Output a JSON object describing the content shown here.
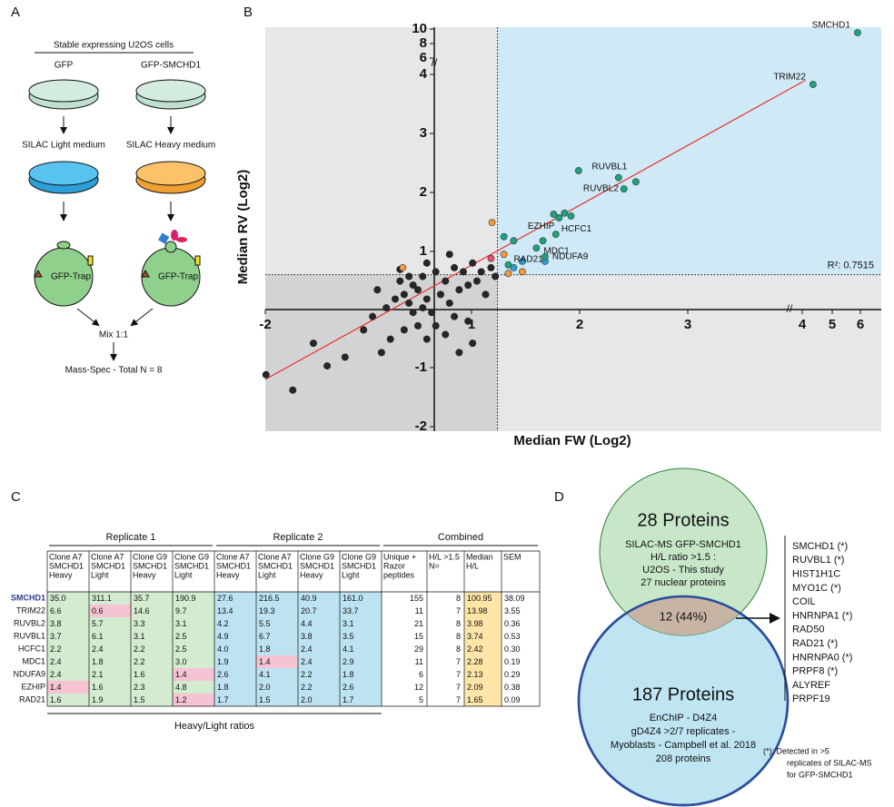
{
  "panel_a": {
    "letter": "A",
    "title": "Stable expressing U2OS cells",
    "left": {
      "label": "GFP",
      "medium": "SILAC Light medium",
      "trap": "GFP-Trap"
    },
    "right": {
      "label": "GFP-SMCHD1",
      "medium": "SILAC Heavy medium",
      "trap": "GFP-Trap"
    },
    "mix": "Mix 1:1",
    "result": "Mass-Spec - Total N = 8"
  },
  "chart_data": {
    "type": "scatter",
    "letter": "B",
    "xlabel": "Median FW (Log2)",
    "ylabel": "Median RV (Log2)",
    "xlim": [
      -2,
      6
    ],
    "ylim": [
      -2,
      10
    ],
    "xticks": [
      -2,
      1,
      2,
      3,
      4,
      5,
      6
    ],
    "yticks": [
      -2,
      -1,
      1,
      2,
      3,
      4,
      6,
      8,
      10
    ],
    "thresholds": {
      "x": 1.24,
      "y": 0.6
    },
    "series": [
      {
        "color": "#262626",
        "x": [
          -1.99,
          -1.6,
          -0.84,
          -0.57,
          -0.44,
          -0.24,
          -0.11,
          0.02,
          0.09,
          0.15,
          0.22,
          0.29,
          0.35,
          0.42,
          0.48,
          0.55,
          0.62,
          0.68,
          0.75,
          0.82,
          0.88,
          0.95,
          1.01,
          1.05,
          1.09,
          1.18,
          1.22,
          0.22,
          0.35,
          0.62,
          0.82,
          1.01,
          -0.18,
          0.02,
          0.15,
          -0.04,
          0.35,
          -0.31,
          0.75,
          0.95,
          1.13,
          0.29,
          0.48,
          0.68,
          0.09,
          -1.1,
          -1.3,
          -0.37,
          -0.04
        ],
        "values": [
          -1.12,
          -1.38,
          -0.82,
          -0.35,
          -0.12,
          0.03,
          0.18,
          0.26,
          0.11,
          0.42,
          0.34,
          0.57,
          0.18,
          -0.05,
          0.65,
          0.26,
          0.49,
          0.11,
          0.72,
          0.34,
          0.65,
          0.42,
          0.8,
          0.49,
          0.65,
          0.72,
          0.57,
          -0.28,
          -0.51,
          -0.43,
          -0.74,
          -0.58,
          -0.51,
          -0.35,
          -0.05,
          0.49,
          0.8,
          -0.74,
          -0.12,
          -0.2,
          0.26,
          0.03,
          -0.28,
          0.95,
          0.57,
          -0.97,
          -0.58,
          0.34,
          0.69
        ]
      },
      {
        "color": "#f39a3b",
        "x": [
          1.19,
          0.0,
          1.3,
          1.34,
          1.47
        ],
        "values": [
          1.49,
          0.72,
          0.95,
          0.62,
          0.65
        ]
      },
      {
        "color": "#2e9fd6",
        "x": [
          1.39,
          1.47,
          1.68
        ],
        "values": [
          0.72,
          0.83,
          0.83
        ]
      },
      {
        "color": "#e8506a",
        "x": [
          1.18
        ],
        "values": [
          0.88
        ]
      },
      {
        "color": "#1fa27a",
        "x": [
          1.99,
          2.52,
          1.76,
          1.81,
          1.86,
          1.92,
          1.3,
          1.39
        ],
        "values": [
          2.37,
          2.18,
          1.63,
          1.57,
          1.65,
          1.6,
          1.25,
          1.18
        ]
      },
      {
        "color": "#1fa27a",
        "x": [
          5.9,
          4.36,
          2.36,
          2.41,
          1.66,
          1.78,
          1.6,
          1.68,
          1.34
        ],
        "values": [
          9.5,
          3.83,
          2.25,
          2.06,
          1.18,
          1.29,
          1.06,
          0.91,
          0.77
        ],
        "point_labels": [
          "SMCHD1",
          "TRIM22",
          "RUVBL1",
          "RUVBL2",
          "EZHIP",
          "HCFC1",
          "MDC1",
          "NDUFA9",
          "RAD21"
        ]
      }
    ],
    "fit": {
      "color": "#e8302a",
      "x": [
        -2,
        4.1
      ],
      "values": [
        -1.2,
        3.9
      ],
      "label": "R²: 0.7515"
    }
  },
  "table": {
    "letter": "C",
    "groups": [
      "Replicate 1",
      "Replicate 2",
      "Combined"
    ],
    "footer": "Heavy/Light ratios",
    "columns": [
      [
        "Clone A7",
        "SMCHD1",
        "Heavy"
      ],
      [
        "Clone A7",
        "SMCHD1",
        "Light"
      ],
      [
        "Clone G9",
        "SMCHD1",
        "Heavy"
      ],
      [
        "Clone G9",
        "SMCHD1",
        "Light"
      ],
      [
        "Clone A7",
        "SMCHD1",
        "Heavy"
      ],
      [
        "Clone A7",
        "SMCHD1",
        "Light"
      ],
      [
        "Clone G9",
        "SMCHD1",
        "Heavy"
      ],
      [
        "Clone G9",
        "SMCHD1",
        "Light"
      ],
      [
        "Unique +",
        "Razor",
        "peptides"
      ],
      [
        "H/L >1.5",
        "N="
      ],
      [
        "Median",
        "H/L"
      ],
      [
        "SEM"
      ]
    ],
    "rows": [
      [
        "SMCHD1",
        "35.0",
        "311.1",
        "35.7",
        "190.9",
        "27.6",
        "216.5",
        "40.9",
        "161.0",
        "155",
        "8",
        "100.95",
        "38.09"
      ],
      [
        "TRIM22",
        "6.6",
        "0.6",
        "14.6",
        "9.7",
        "13.4",
        "19.3",
        "20.7",
        "33.7",
        "11",
        "7",
        "13.98",
        "3.55"
      ],
      [
        "RUVBL2",
        "3.8",
        "5.7",
        "3.3",
        "3.1",
        "4.2",
        "5.5",
        "4.4",
        "3.1",
        "21",
        "8",
        "3.98",
        "0.36"
      ],
      [
        "RUVBL1",
        "3.7",
        "6.1",
        "3.1",
        "2.5",
        "4.9",
        "6.7",
        "3.8",
        "3.5",
        "15",
        "8",
        "3.74",
        "0.53"
      ],
      [
        "HCFC1",
        "2.2",
        "2.4",
        "2.2",
        "2.5",
        "4.0",
        "1.8",
        "2.4",
        "4.1",
        "29",
        "8",
        "2.42",
        "0.30"
      ],
      [
        "MDC1",
        "2.4",
        "1.8",
        "2.2",
        "3.0",
        "1.9",
        "1.4",
        "2.4",
        "2.9",
        "11",
        "7",
        "2.28",
        "0.19"
      ],
      [
        "NDUFA9",
        "2.4",
        "2.1",
        "1.6",
        "1.4",
        "2.6",
        "4.1",
        "2.2",
        "1.8",
        "6",
        "7",
        "2.13",
        "0.29"
      ],
      [
        "EZHIP",
        "1.4",
        "1.6",
        "2.3",
        "4.8",
        "1.8",
        "2.0",
        "2.2",
        "2.6",
        "12",
        "7",
        "2.09",
        "0.38"
      ],
      [
        "RAD21",
        "1.6",
        "1.9",
        "1.5",
        "1.2",
        "1.7",
        "1.5",
        "2.0",
        "1.7",
        "5",
        "7",
        "1.65",
        "0.09"
      ]
    ],
    "pink_cells": [
      [
        1,
        2
      ],
      [
        6,
        4
      ],
      [
        7,
        1
      ],
      [
        8,
        4
      ],
      [
        5,
        6
      ]
    ]
  },
  "venn": {
    "letter": "D",
    "top": {
      "title": "28 Proteins",
      "lines": [
        "SILAC-MS GFP-SMCHD1",
        "H/L ratio >1.5 :",
        "U2OS - This study",
        "27 nuclear proteins"
      ]
    },
    "overlap": "12 (44%)",
    "bottom": {
      "title": "187 Proteins",
      "lines": [
        "EnChIP -  D4Z4",
        "gD4Z4 >2/7 replicates -",
        "Myoblasts - Campbell et al. 2018",
        "208 proteins"
      ]
    },
    "list": [
      {
        "text": "SMCHD1  (*)",
        "color": "#2e7d3a"
      },
      {
        "text": "RUVBL1  (*)",
        "color": "#2e7d3a"
      },
      {
        "text": "HIST1H1C",
        "color": "#e8602c"
      },
      {
        "text": "MYO1C  (*)",
        "color": "#2f7fc1"
      },
      {
        "text": "COIL",
        "color": "#e8602c"
      },
      {
        "text": "HNRNPA1  (*)",
        "color": "#2f7fc1"
      },
      {
        "text": "RAD50",
        "color": "#e8602c"
      },
      {
        "text": "RAD21  (*)",
        "color": "#2e7d3a"
      },
      {
        "text": "HNRNPA0  (*)",
        "color": "#2f7fc1"
      },
      {
        "text": "PRPF8  (*)",
        "color": "#2f7fc1"
      },
      {
        "text": "ALYREF",
        "color": "#e8602c"
      },
      {
        "text": "PRPF19",
        "color": "#e8602c"
      }
    ],
    "footnote": [
      "(*): Detected in >5",
      "replicates of SILAC-MS",
      "for GFP-SMCHD1"
    ]
  }
}
